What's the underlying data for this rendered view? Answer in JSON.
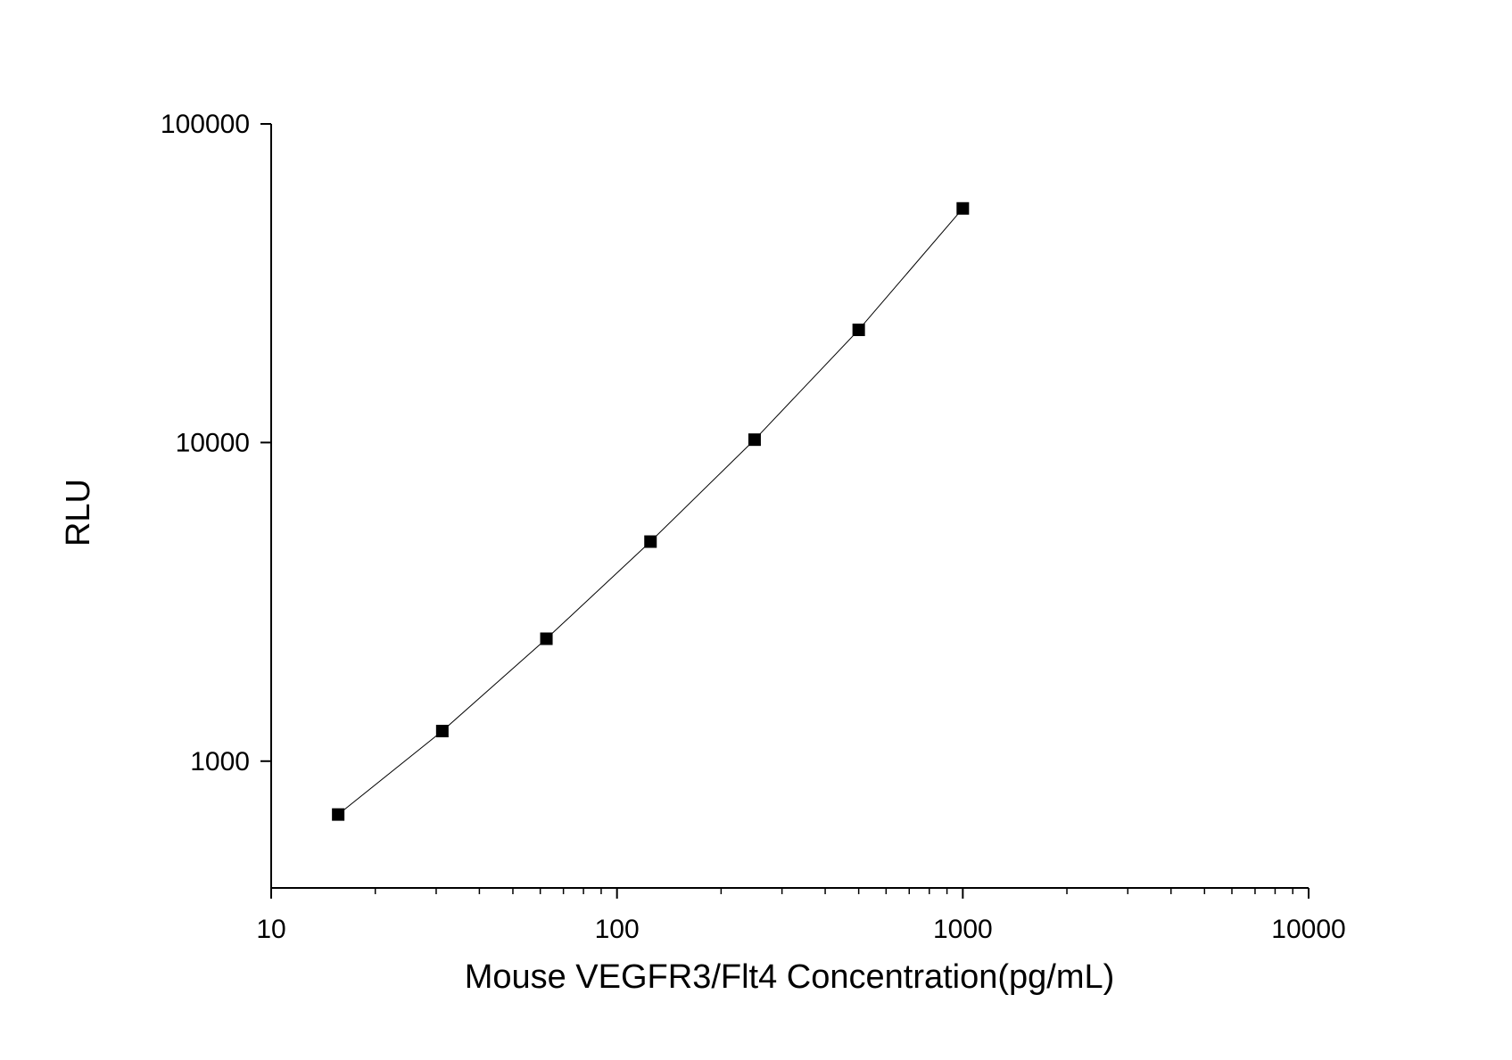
{
  "chart_data": {
    "type": "scatter",
    "x_label": "Mouse VEGFR3/Flt4 Concentration(pg/mL)",
    "y_label": "RLU",
    "x_log": true,
    "y_log": true,
    "xlim": [
      10,
      10000
    ],
    "ylim": [
      400,
      100000
    ],
    "xticks": [
      10,
      100,
      1000,
      10000
    ],
    "yticks": [
      1000,
      10000,
      100000
    ],
    "xminorticks": [
      20,
      30,
      40,
      50,
      60,
      70,
      80,
      90,
      200,
      300,
      400,
      500,
      600,
      700,
      800,
      900,
      2000,
      3000,
      4000,
      5000,
      6000,
      7000,
      8000,
      9000
    ],
    "series": [
      {
        "color": "#000000",
        "connect": true,
        "x": [
          15.625,
          31.25,
          62.5,
          125,
          250,
          500,
          1000
        ],
        "values": [
          680,
          1243,
          2422,
          4887,
          10210,
          22580,
          54300
        ]
      }
    ]
  }
}
